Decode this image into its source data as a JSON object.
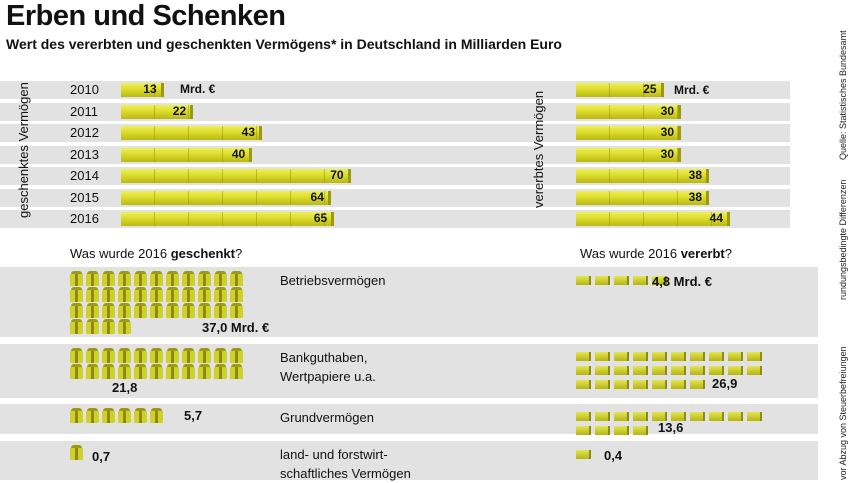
{
  "title": "Erben und Schenken",
  "subtitle": "Wert des vererbten und geschenkten Vermögens* in Deutschland in Milliarden Euro",
  "source": "Quelle: Statistisches Bundesamt",
  "note_rounding": "rundungsbedingte Differenzen",
  "note_asterisk": "vor Abzug von Steuerbefreiungen",
  "unit_label": "Mrd. €",
  "colors": {
    "bar": "#dcdc2c",
    "band": "#e2e2e2"
  },
  "chart_data": [
    {
      "type": "bar",
      "ylabel": "geschenktes Vermögen",
      "categories": [
        "2010",
        "2011",
        "2012",
        "2013",
        "2014",
        "2015",
        "2016"
      ],
      "values": [
        13,
        22,
        43,
        40,
        70,
        64,
        65
      ]
    },
    {
      "type": "bar",
      "ylabel": "vererbtes Vermögen",
      "categories": [
        "2010",
        "2011",
        "2012",
        "2013",
        "2014",
        "2015",
        "2016"
      ],
      "values": [
        25,
        30,
        30,
        30,
        38,
        38,
        44
      ]
    }
  ],
  "breakdown": {
    "gift_heading_pre": "Was wurde 2016 ",
    "gift_heading_bold": "geschenkt",
    "inherit_heading_pre": "Was wurde 2016 ",
    "inherit_heading_bold": "vererbt",
    "categories": [
      {
        "label1": "Betriebsvermögen",
        "label2": "",
        "gift": "37,0 Mrd. €",
        "gift_num": 37.0,
        "inherit": "4,8 Mrd. €",
        "inherit_num": 4.8
      },
      {
        "label1": "Bankguthaben,",
        "label2": "Wertpapiere u.a.",
        "gift": "21,8",
        "gift_num": 21.8,
        "inherit": "26,9",
        "inherit_num": 26.9
      },
      {
        "label1": "Grundvermögen",
        "label2": "",
        "gift": "5,7",
        "gift_num": 5.7,
        "inherit": "13,6",
        "inherit_num": 13.6
      },
      {
        "label1": "land- und forstwirt-",
        "label2": "schaftliches Vermögen",
        "gift": "0,7",
        "gift_num": 0.7,
        "inherit": "0,4",
        "inherit_num": 0.4
      }
    ]
  },
  "icons": {
    "gift": "gift-icon",
    "inherit": "brick-icon"
  }
}
